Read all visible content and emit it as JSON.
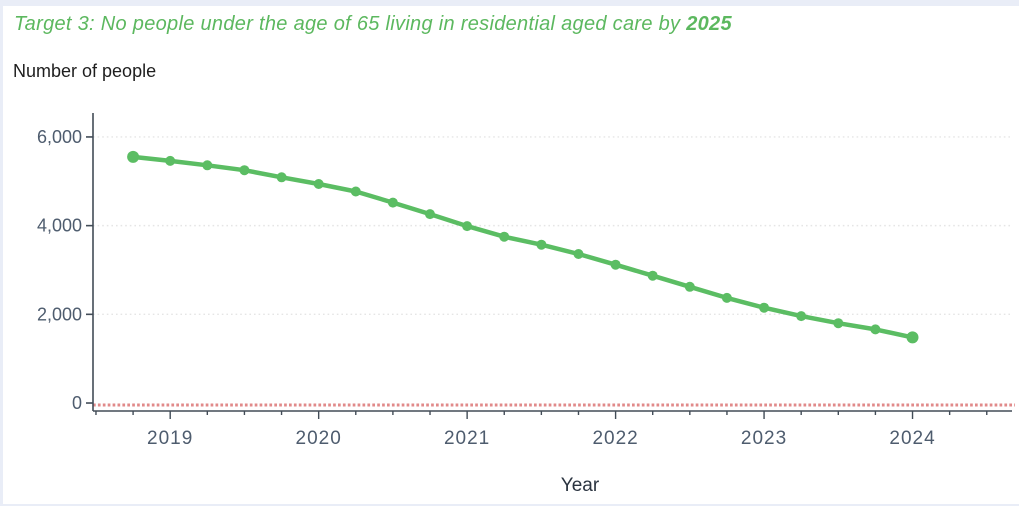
{
  "page": {
    "title_prefix": "Target 3: No people under the age of 65 living in residential aged care by ",
    "title_bold": "2025",
    "subtitle": "Number of people"
  },
  "chart_data": {
    "type": "line",
    "title": "Target 3: No people under the age of 65 living in residential aged care by 2025",
    "ylabel": "Number of people",
    "xlabel": "Year",
    "x": [
      2018.75,
      2019.0,
      2019.25,
      2019.5,
      2019.75,
      2020.0,
      2020.25,
      2020.5,
      2020.75,
      2021.0,
      2021.25,
      2021.5,
      2021.75,
      2022.0,
      2022.25,
      2022.5,
      2022.75,
      2023.0,
      2023.25,
      2023.5,
      2023.75,
      2024.0
    ],
    "values": [
      5550,
      5460,
      5360,
      5250,
      5090,
      4940,
      4770,
      4520,
      4260,
      3990,
      3750,
      3570,
      3360,
      3120,
      2870,
      2620,
      2370,
      2150,
      1960,
      1800,
      1660,
      1480
    ],
    "xlim": [
      2018.48,
      2024.67
    ],
    "ylim": [
      -180,
      6540
    ],
    "y_ticks": [
      0,
      2000,
      4000,
      6000
    ],
    "y_tick_labels": [
      "0",
      "2,000",
      "4,000",
      "6,000"
    ],
    "x_ticks_major": [
      2019,
      2020,
      2021,
      2022,
      2023,
      2024
    ],
    "x_tick_labels": [
      "2019",
      "2020",
      "2021",
      "2022",
      "2023",
      "2024"
    ],
    "x_minor_range": [
      2018.5,
      2024.5
    ],
    "x_minor_interval": 0.25,
    "grid": "horizontal-dotted",
    "legend": "none",
    "target_line": {
      "value": 0,
      "style": "dotted",
      "color": "#e18a8a"
    }
  },
  "colors": {
    "title_green": "#5cb85f",
    "line_green": "#5bbd63",
    "target_red": "#e18a8a",
    "axis_text": "#4e5c6e",
    "axis_line": "#424c57",
    "grid": "#e5e5e5"
  }
}
